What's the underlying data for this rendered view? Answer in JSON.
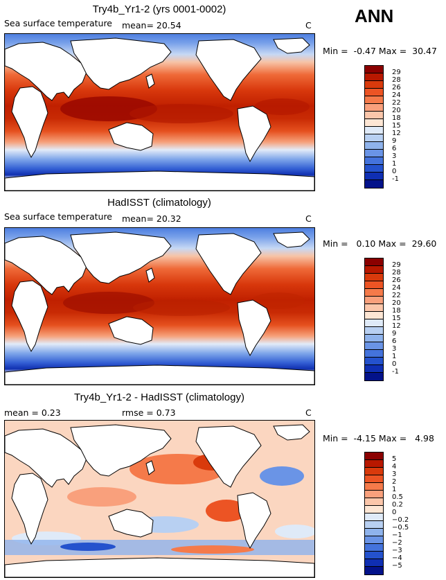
{
  "header": {
    "season": "ANN"
  },
  "panels": [
    {
      "title": "Try4b_Yr1-2 (yrs 0001-0002)",
      "variable": "Sea surface temperature",
      "stat1": "mean=  20.54",
      "stat2": "",
      "units": "C",
      "minmax": "Min =  -0.47 Max =  30.47"
    },
    {
      "title": "HadISST (climatology)",
      "variable": "Sea surface temperature",
      "stat1": "mean=  20.32",
      "stat2": "",
      "units": "C",
      "minmax": "Min =   0.10 Max =  29.60"
    },
    {
      "title": "Try4b_Yr1-2 - HadISST (climatology)",
      "variable": "",
      "stat1": "mean =   0.23",
      "stat2": "rmse =   0.73",
      "units": "C",
      "minmax": "Min =  -4.15 Max =   4.98"
    }
  ],
  "colorbars": {
    "sst": {
      "labels": [
        "29",
        "28",
        "26",
        "24",
        "22",
        "20",
        "18",
        "15",
        "12",
        "9",
        "6",
        "3",
        "1",
        "0",
        "-1"
      ],
      "colors": [
        "#8b0000",
        "#b81800",
        "#d93a0c",
        "#ec5424",
        "#f57a4a",
        "#f9a07c",
        "#fbc6aa",
        "#fde6d4",
        "#dfeaf8",
        "#b8d0f2",
        "#8fb3ec",
        "#6a94e6",
        "#4473dc",
        "#2452cd",
        "#0f2fb3",
        "#03128a"
      ]
    },
    "diff": {
      "labels": [
        "5",
        "4",
        "3",
        "2",
        "1",
        "0.5",
        "0.2",
        "0",
        "−0.2",
        "−0.5",
        "−1",
        "−2",
        "−3",
        "−4",
        "−5"
      ],
      "colors": [
        "#8b0000",
        "#b81800",
        "#d93a0c",
        "#ec5424",
        "#f57a4a",
        "#f9a07c",
        "#fbc6aa",
        "#fde6d4",
        "#dfeaf8",
        "#b8d0f2",
        "#8fb3ec",
        "#6a94e6",
        "#4473dc",
        "#2452cd",
        "#0f2fb3",
        "#03128a"
      ]
    }
  }
}
